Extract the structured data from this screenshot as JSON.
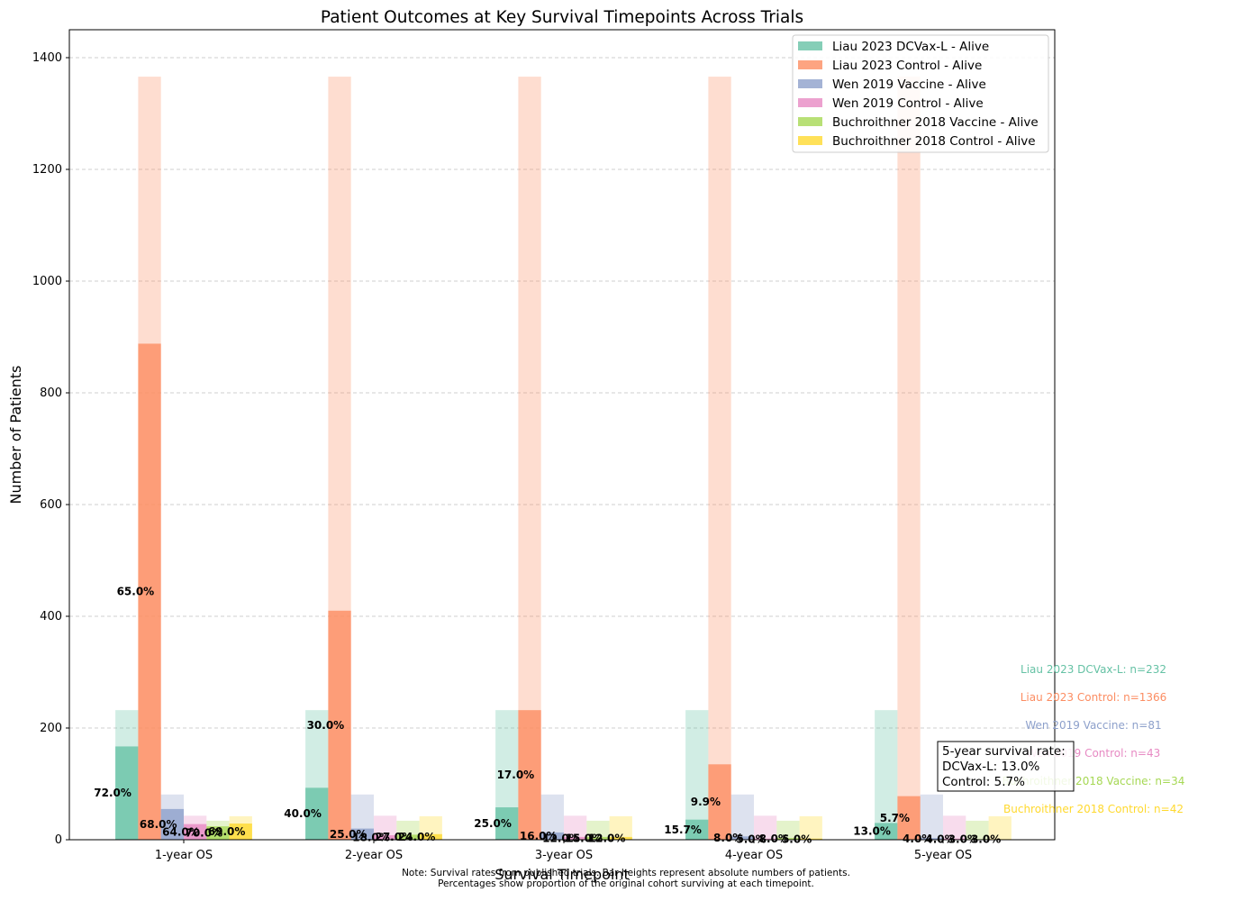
{
  "colors": {
    "series": [
      "#66c2a5",
      "#fc8d62",
      "#8da0cb",
      "#e78ac3",
      "#a6d854",
      "#ffd92f"
    ],
    "grid": "#b0b0b0",
    "axis": "#000000"
  },
  "chart_data": {
    "type": "bar",
    "title": "Patient Outcomes at Key Survival Timepoints Across Trials",
    "xlabel": "Survival Timepoint",
    "ylabel": "Number of Patients",
    "ylim": [
      0,
      1450
    ],
    "yticks": [
      0,
      200,
      400,
      600,
      800,
      1000,
      1200,
      1400
    ],
    "grid": "y-dashed",
    "legend_position": "top-right",
    "categories": [
      "1-year OS",
      "2-year OS",
      "3-year OS",
      "4-year OS",
      "5-year OS"
    ],
    "series": [
      {
        "name": "Liau 2023 DCVax-L - Alive",
        "cohort": 232,
        "cohort_label": "Liau 2023 DCVax-L: n=232",
        "alive": [
          167,
          93,
          58,
          36,
          30
        ],
        "labels": [
          "72.0%",
          "40.0%",
          "25.0%",
          "15.7%",
          "13.0%"
        ]
      },
      {
        "name": "Liau 2023 Control - Alive",
        "cohort": 1366,
        "cohort_label": "Liau 2023 Control: n=1366",
        "alive": [
          888,
          410,
          232,
          135,
          78
        ],
        "labels": [
          "65.0%",
          "30.0%",
          "17.0%",
          "9.9%",
          "5.7%"
        ]
      },
      {
        "name": "Wen 2019 Vaccine - Alive",
        "cohort": 81,
        "cohort_label": "Wen 2019 Vaccine: n=81",
        "alive": [
          55,
          20,
          13,
          6,
          3
        ],
        "labels": [
          "68.0%",
          "25.0%",
          "16.0%",
          "8.0%",
          "4.0%"
        ]
      },
      {
        "name": "Wen 2019 Control - Alive",
        "cohort": 43,
        "cohort_label": "Wen 2019 Control: n=43",
        "alive": [
          28,
          8,
          5,
          2,
          2
        ],
        "labels": [
          "64.0%",
          "18.0%",
          "12.0%",
          "5.0%",
          "4.0%"
        ]
      },
      {
        "name": "Buchroithner 2018 Vaccine - Alive",
        "cohort": 34,
        "cohort_label": "Buchroithner 2018 Vaccine: n=34",
        "alive": [
          24,
          9,
          5,
          3,
          1
        ],
        "labels": [
          "70.0%",
          "27.0%",
          "15.0%",
          "8.0%",
          "3.0%"
        ]
      },
      {
        "name": "Buchroithner 2018 Control - Alive",
        "cohort": 42,
        "cohort_label": "Buchroithner 2018 Control: n=42",
        "alive": [
          29,
          10,
          5,
          2,
          1
        ],
        "labels": [
          "69.0%",
          "24.0%",
          "12.0%",
          "5.0%",
          "3.0%"
        ]
      }
    ],
    "annotation": [
      "5-year survival rate:",
      "DCVax-L: 13.0%",
      "Control: 5.7%"
    ],
    "footnote": [
      "Note: Survival rates from published trials. Bar heights represent absolute numbers of patients.",
      "Percentages show proportion of the original cohort surviving at each timepoint."
    ]
  }
}
